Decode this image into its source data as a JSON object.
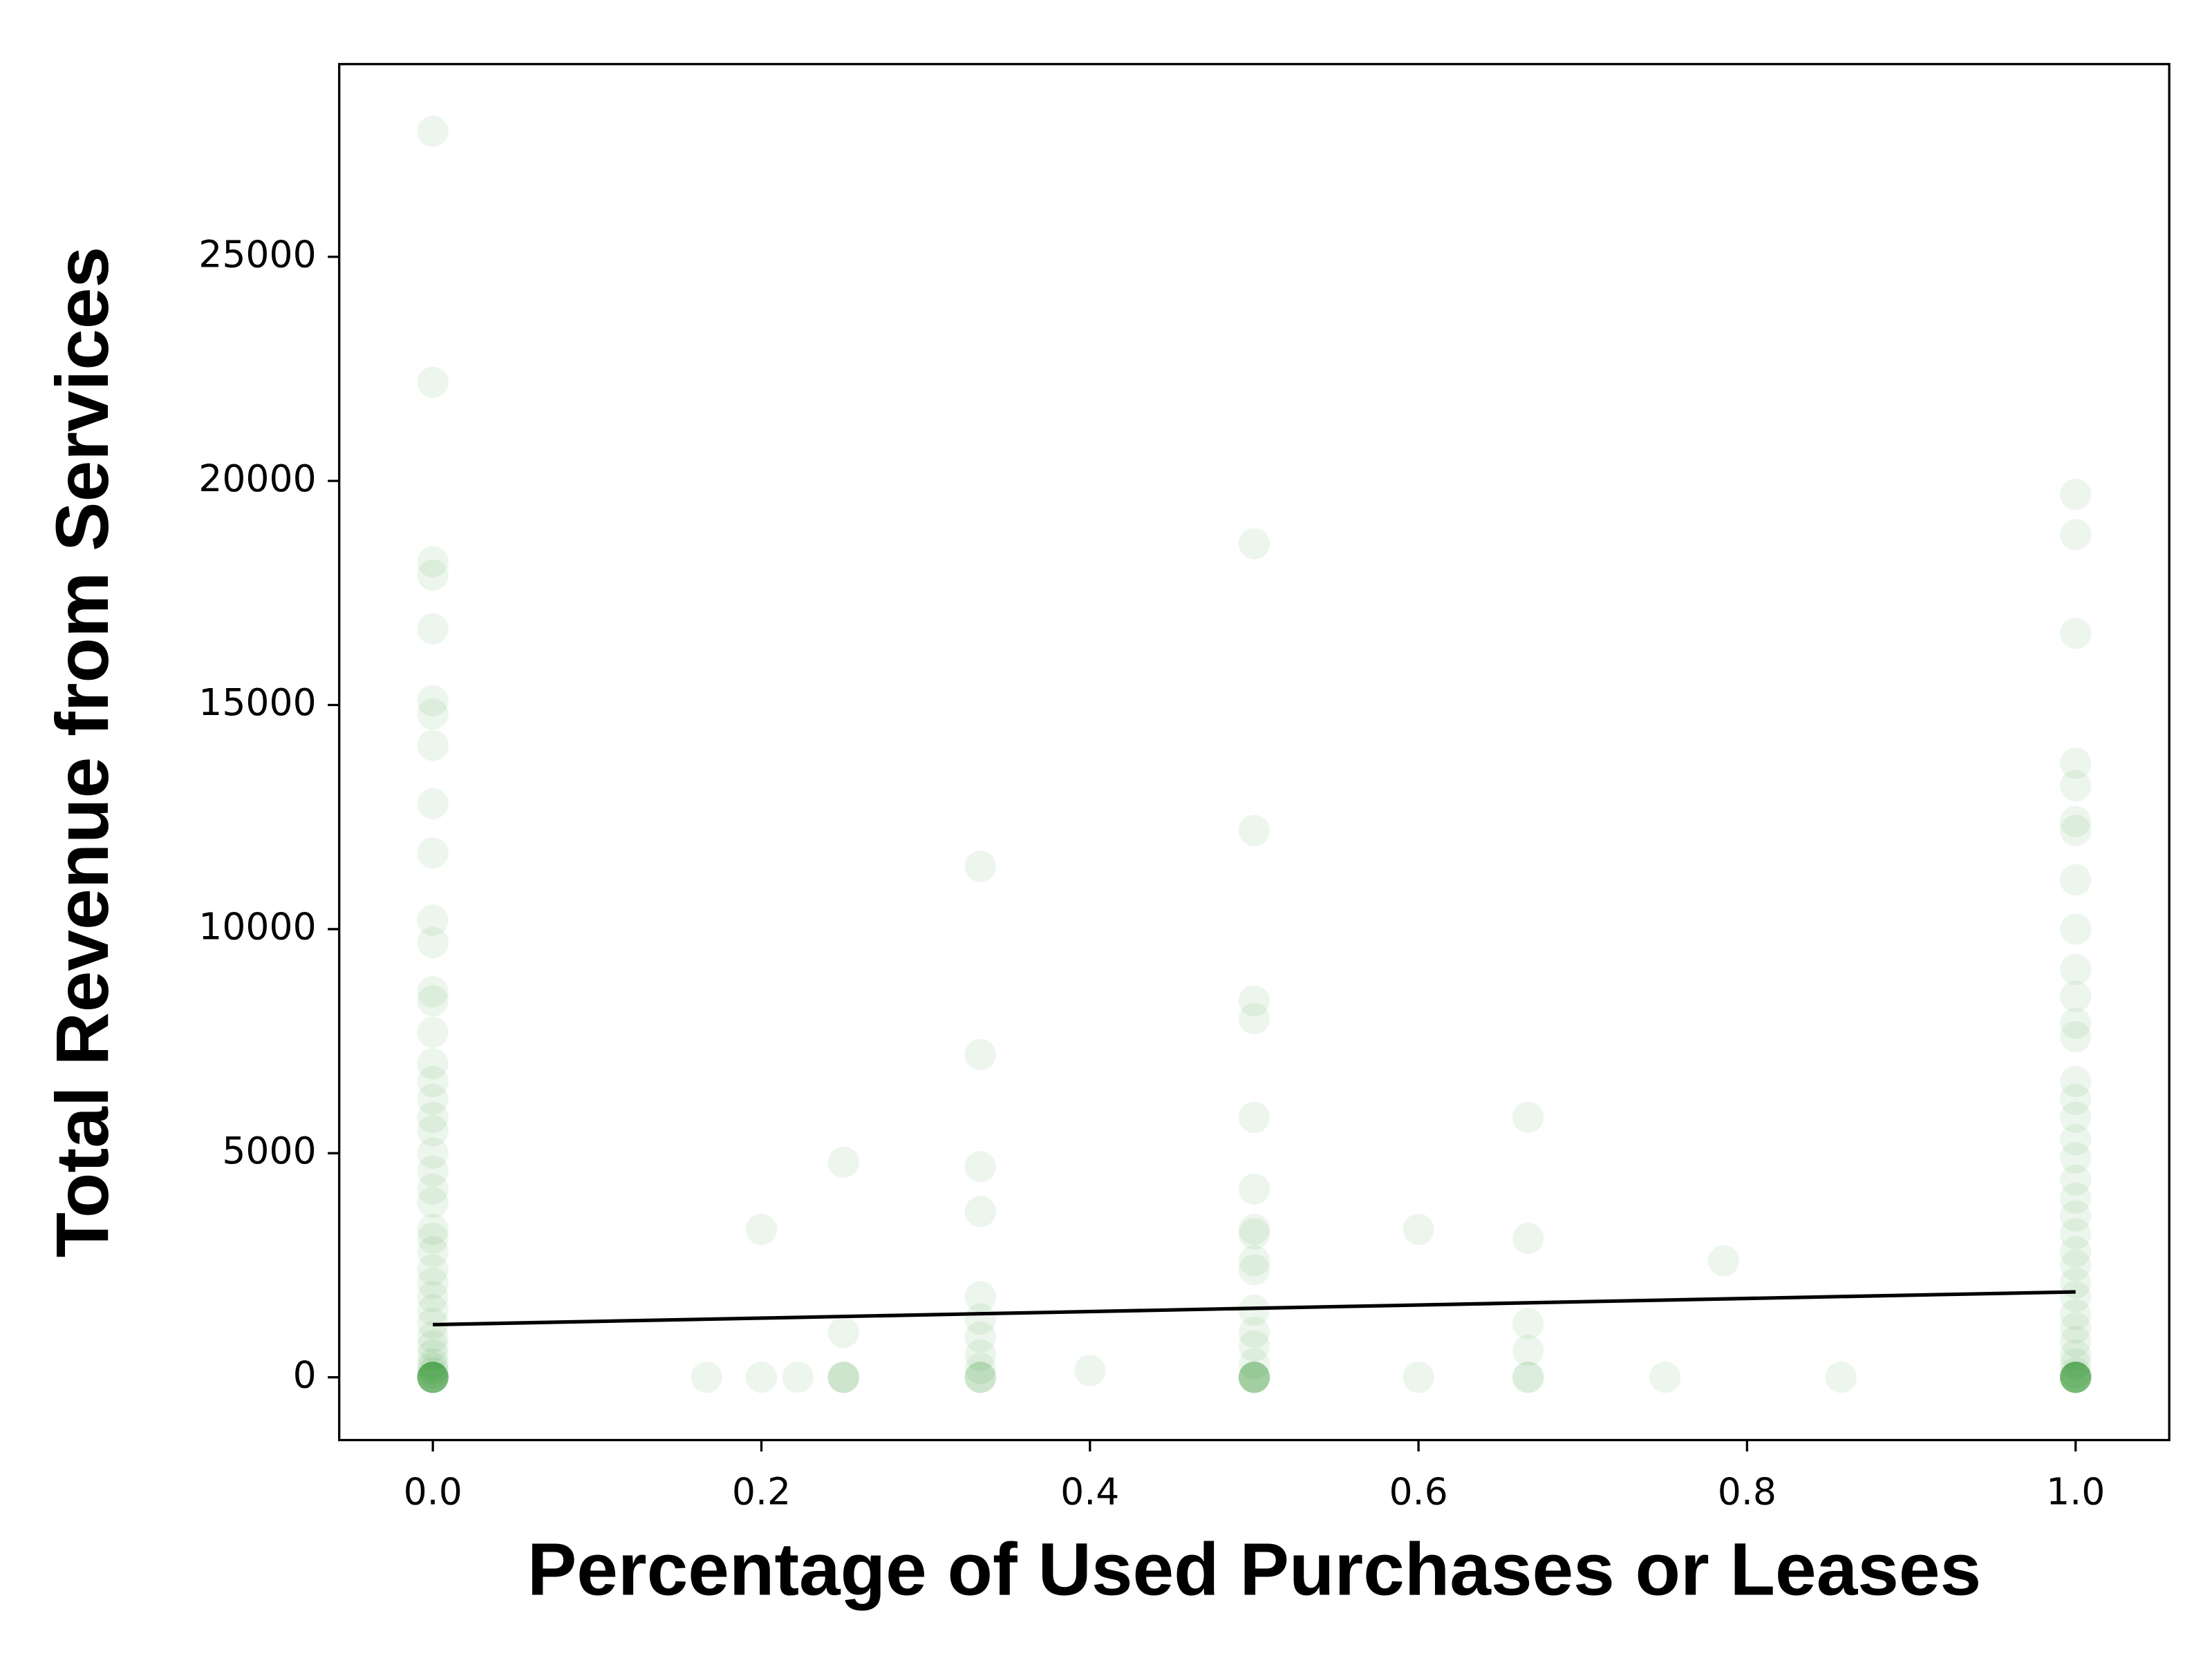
{
  "chart_data": {
    "type": "scatter",
    "xlabel": "Percentage of Used Purchases or Leases",
    "ylabel": "Total Revenue from Services",
    "xlim": [
      -0.057,
      1.057
    ],
    "ylim": [
      -1400,
      29300
    ],
    "xticks": [
      {
        "value": 0,
        "label": "0.0"
      },
      0.2,
      0.4,
      0.6,
      0.8,
      {
        "value": 1,
        "label": "1.0"
      }
    ],
    "yticks": [
      0,
      5000,
      10000,
      15000,
      20000,
      25000
    ],
    "series": [
      {
        "type": "scatter",
        "color": "#008000",
        "opacity": 0.07,
        "x": [
          0,
          0,
          0,
          0,
          0,
          0,
          0,
          0,
          0,
          0,
          0,
          0,
          0,
          0,
          0,
          0,
          0,
          0,
          0,
          0,
          0,
          0,
          0,
          0,
          0,
          0,
          0,
          0,
          0,
          0,
          0,
          0,
          0,
          0,
          0,
          0,
          0,
          0,
          0,
          0,
          0,
          0,
          0,
          0,
          0,
          0,
          0,
          0,
          1,
          1,
          1,
          1,
          1,
          1,
          1,
          1,
          1,
          1,
          1,
          1,
          1,
          1,
          1,
          1,
          1,
          1,
          1,
          1,
          1,
          1,
          1,
          1,
          1,
          1,
          1,
          1,
          1,
          1,
          1,
          1,
          1,
          1,
          1,
          1,
          1,
          1,
          1,
          1,
          1,
          1,
          0.5,
          0.5,
          0.5,
          0.5,
          0.5,
          0.5,
          0.5,
          0.5,
          0.5,
          0.5,
          0.5,
          0.5,
          0.5,
          0.5,
          0.5,
          0.5,
          0.5,
          0.5,
          0.5,
          0.5,
          0.3333,
          0.3333,
          0.3333,
          0.3333,
          0.3333,
          0.3333,
          0.3333,
          0.3333,
          0.3333,
          0.3333,
          0.3333,
          0.3333,
          0.25,
          0.25,
          0.25,
          0.25,
          0.25,
          0.2,
          0.2,
          0.1667,
          0.2222,
          0.4,
          0.6,
          0.6,
          0.6667,
          0.6667,
          0.6667,
          0.6667,
          0.6667,
          0.6667,
          0.75,
          0.7857,
          0.8571
        ],
        "values": [
          27800,
          22200,
          18200,
          17900,
          16700,
          15100,
          14800,
          14100,
          12800,
          11700,
          10200,
          9700,
          8600,
          8400,
          7700,
          7000,
          6600,
          6200,
          5800,
          5500,
          5000,
          4600,
          4200,
          3900,
          3300,
          3100,
          2800,
          2400,
          2100,
          1800,
          1500,
          1200,
          900,
          700,
          500,
          300,
          200,
          100,
          0,
          0,
          0,
          0,
          0,
          0,
          0,
          0,
          0,
          0,
          19700,
          18800,
          16600,
          13700,
          13200,
          12400,
          12200,
          11100,
          10000,
          9100,
          8500,
          7900,
          7600,
          6600,
          6200,
          5800,
          5300,
          4900,
          4400,
          4000,
          3600,
          3200,
          2800,
          2500,
          2100,
          1800,
          1400,
          1100,
          800,
          500,
          300,
          100,
          0,
          0,
          0,
          0,
          0,
          0,
          0,
          0,
          0,
          0,
          18600,
          12200,
          8400,
          8000,
          5800,
          4200,
          3300,
          3200,
          2600,
          2400,
          1500,
          1000,
          700,
          300,
          0,
          0,
          0,
          0,
          0,
          0,
          11400,
          7200,
          4700,
          3700,
          1800,
          1300,
          900,
          500,
          200,
          0,
          0,
          0,
          4800,
          1000,
          0,
          0,
          0,
          3300,
          0,
          0,
          0,
          150,
          3300,
          0,
          5800,
          3100,
          1200,
          600,
          0,
          0,
          0,
          2600,
          0
        ]
      },
      {
        "type": "line",
        "color": "#000000",
        "x": [
          0,
          1
        ],
        "values": [
          1175,
          1906
        ]
      }
    ]
  }
}
